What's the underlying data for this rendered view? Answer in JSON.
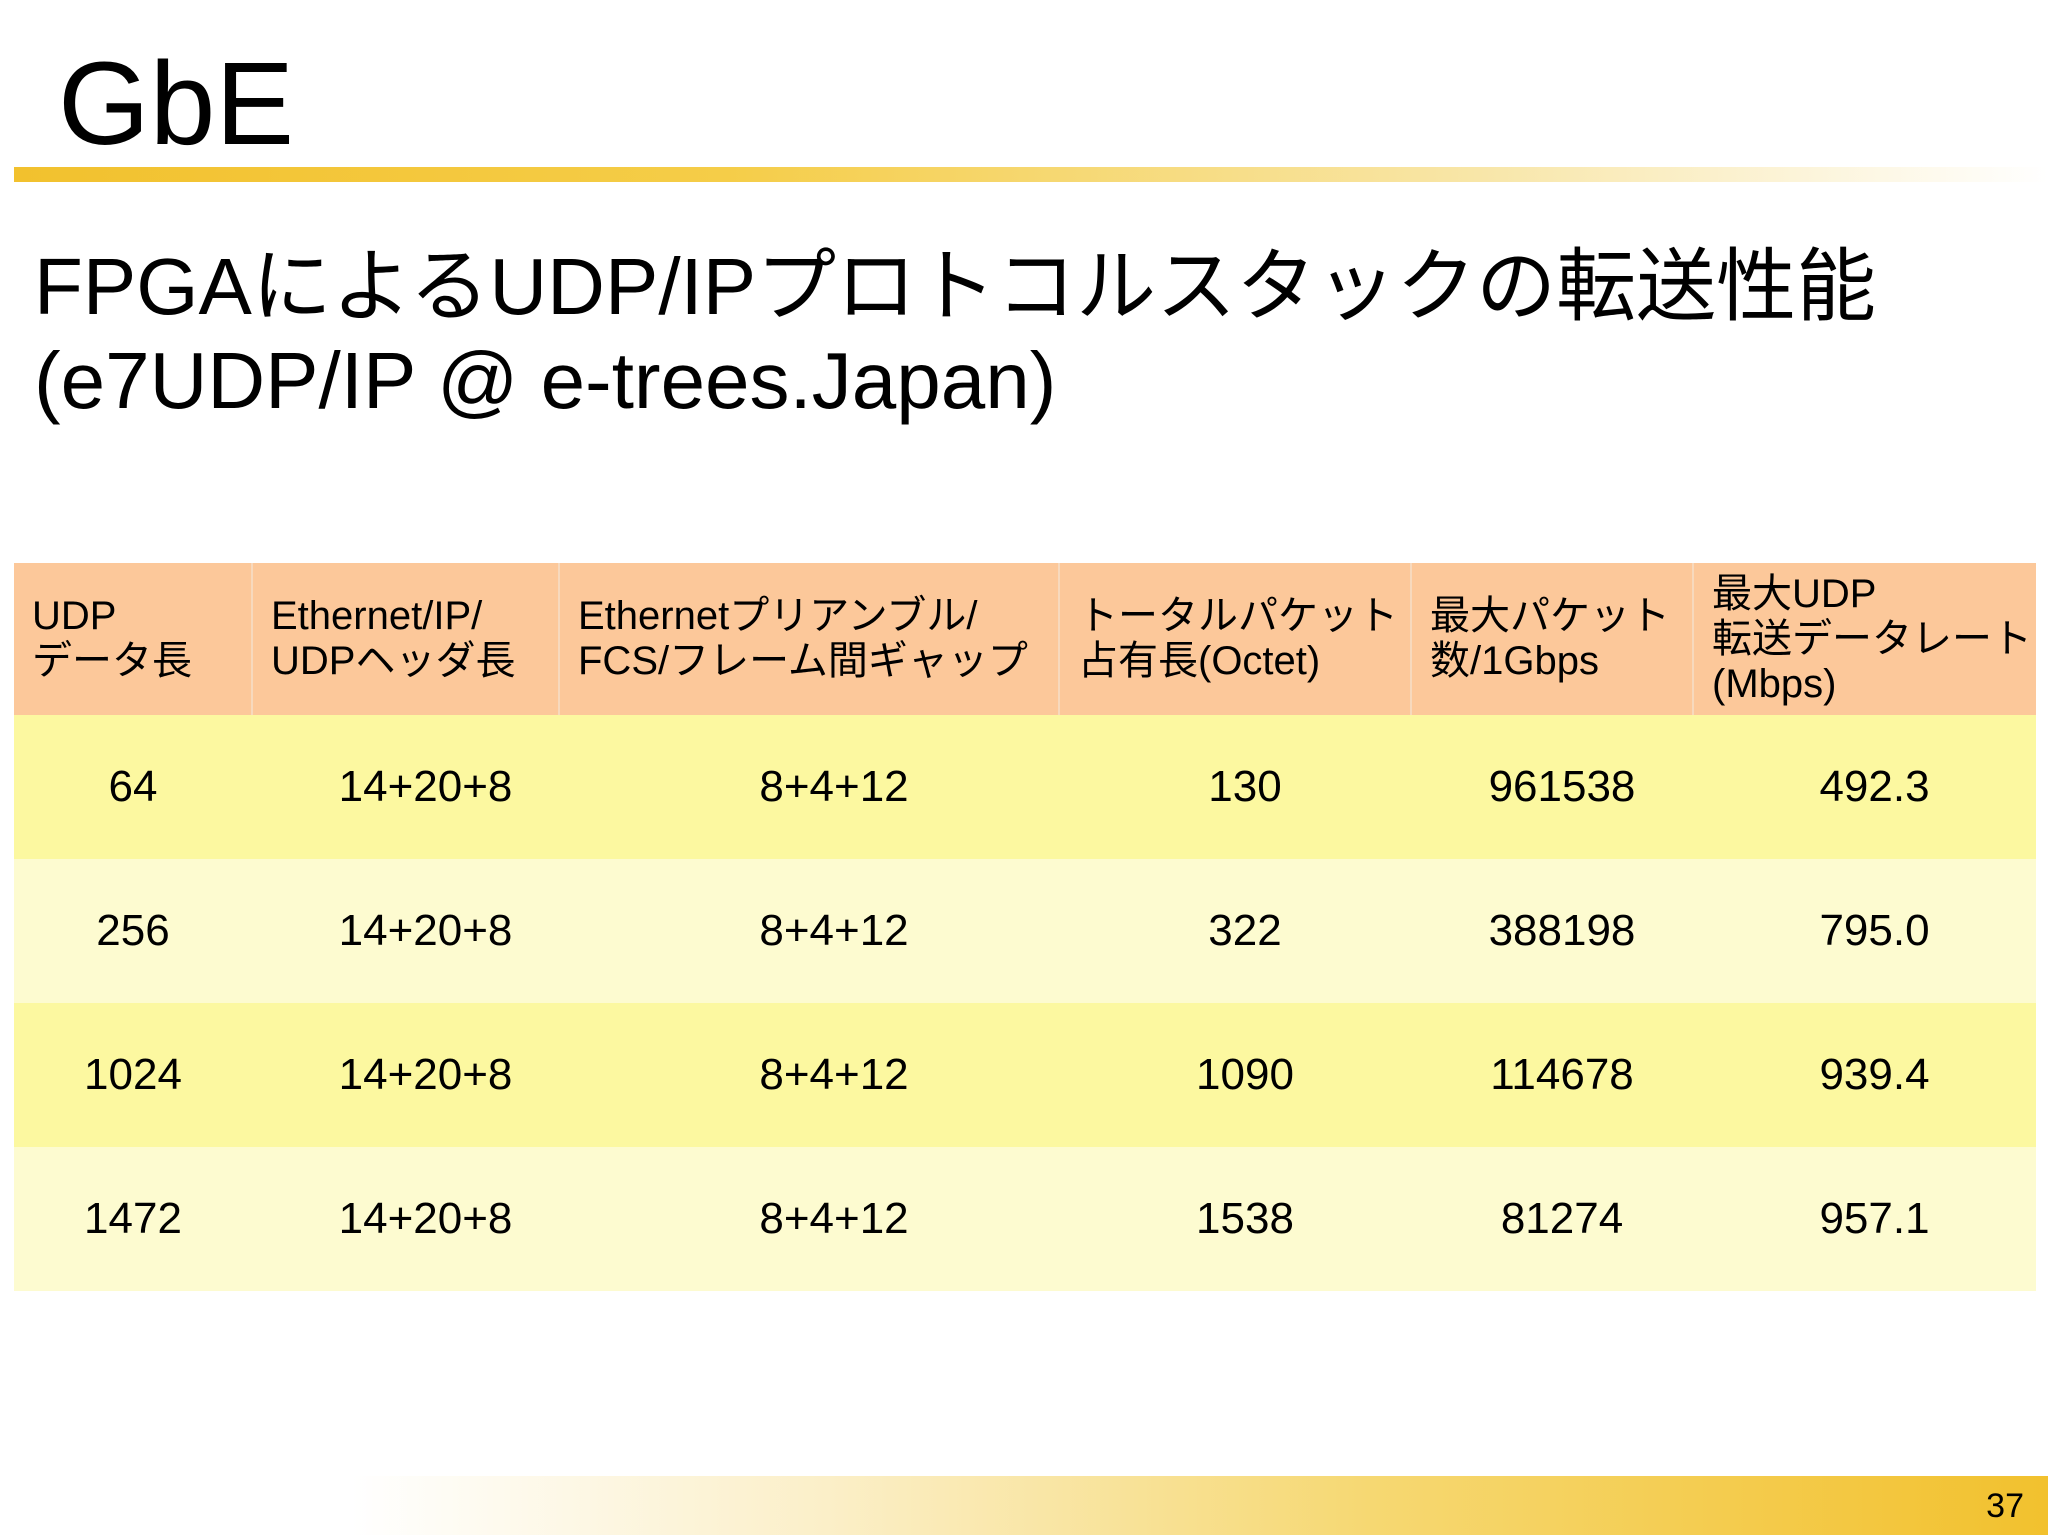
{
  "slide": {
    "title": "GbE",
    "subtitle_line1": "FPGAによるUDP/IPプロトコルスタックの転送性能",
    "subtitle_line2": "(e7UDP/IP @ e-trees.Japan)",
    "page_number": "37"
  },
  "colors": {
    "accent": "#f2c12e",
    "header_fill": "#fcc89a",
    "row_fill_a": "#fcf8a0",
    "row_fill_b": "#fdfbd0"
  },
  "table": {
    "headers": [
      {
        "line1": "UDP",
        "line2": "データ長",
        "line3": ""
      },
      {
        "line1": "Ethernet/IP/",
        "line2": "UDPヘッダ長",
        "line3": ""
      },
      {
        "line1": "Ethernetプリアンブル/",
        "line2": "FCS/フレーム間ギャップ",
        "line3": ""
      },
      {
        "line1": "トータルパケット",
        "line2": "占有長(Octet)",
        "line3": ""
      },
      {
        "line1": "最大パケット",
        "line2": "数/1Gbps",
        "line3": ""
      },
      {
        "line1": "最大UDP",
        "line2": "転送データレート",
        "line3": "(Mbps)"
      }
    ],
    "rows": [
      [
        "64",
        "14+20+8",
        "8+4+12",
        "130",
        "961538",
        "492.3"
      ],
      [
        "256",
        "14+20+8",
        "8+4+12",
        "322",
        "388198",
        "795.0"
      ],
      [
        "1024",
        "14+20+8",
        "8+4+12",
        "1090",
        "114678",
        "939.4"
      ],
      [
        "1472",
        "14+20+8",
        "8+4+12",
        "1538",
        "81274",
        "957.1"
      ]
    ]
  }
}
